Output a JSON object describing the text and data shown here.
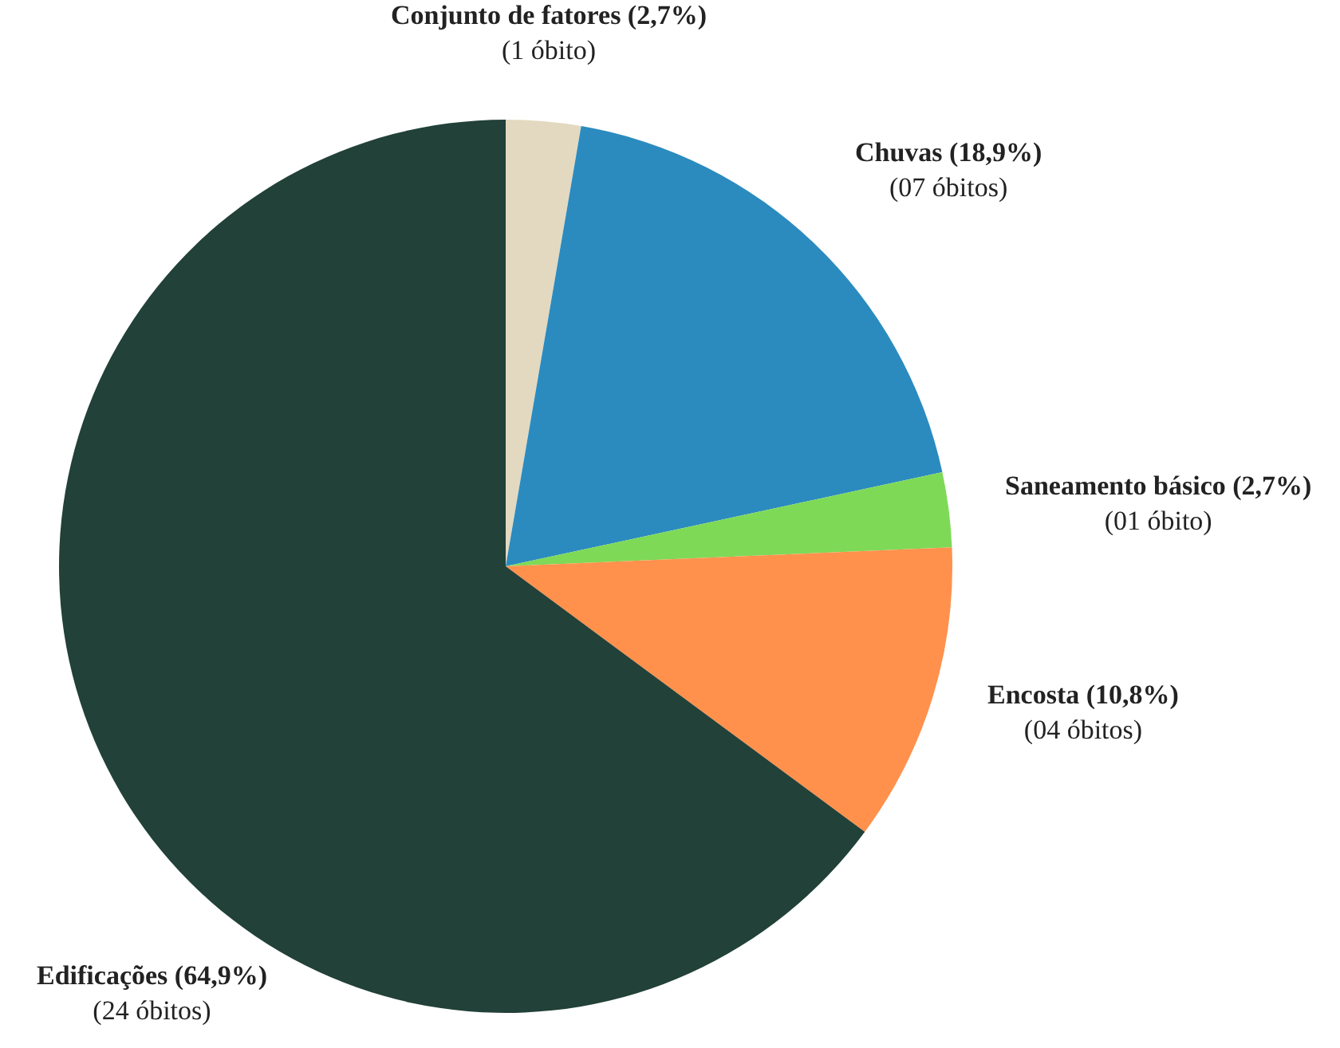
{
  "chart_data": {
    "type": "pie",
    "categories": [
      "Conjunto de fatores (2,7%)",
      "Chuvas (18,9%)",
      "Saneamento básico (2,7%)",
      "Encosta (10,8%)",
      "Edificações (64,9%)"
    ],
    "values": [
      1,
      7,
      1,
      4,
      24
    ],
    "value_labels": [
      "(1 óbito)",
      "(07 óbitos)",
      "(01 óbito)",
      "(04 óbitos)",
      "(24 óbitos)"
    ],
    "colors": [
      "#e3d9c0",
      "#2b8bbf",
      "#7ed957",
      "#ff914d",
      "#224138"
    ],
    "legend": false
  }
}
